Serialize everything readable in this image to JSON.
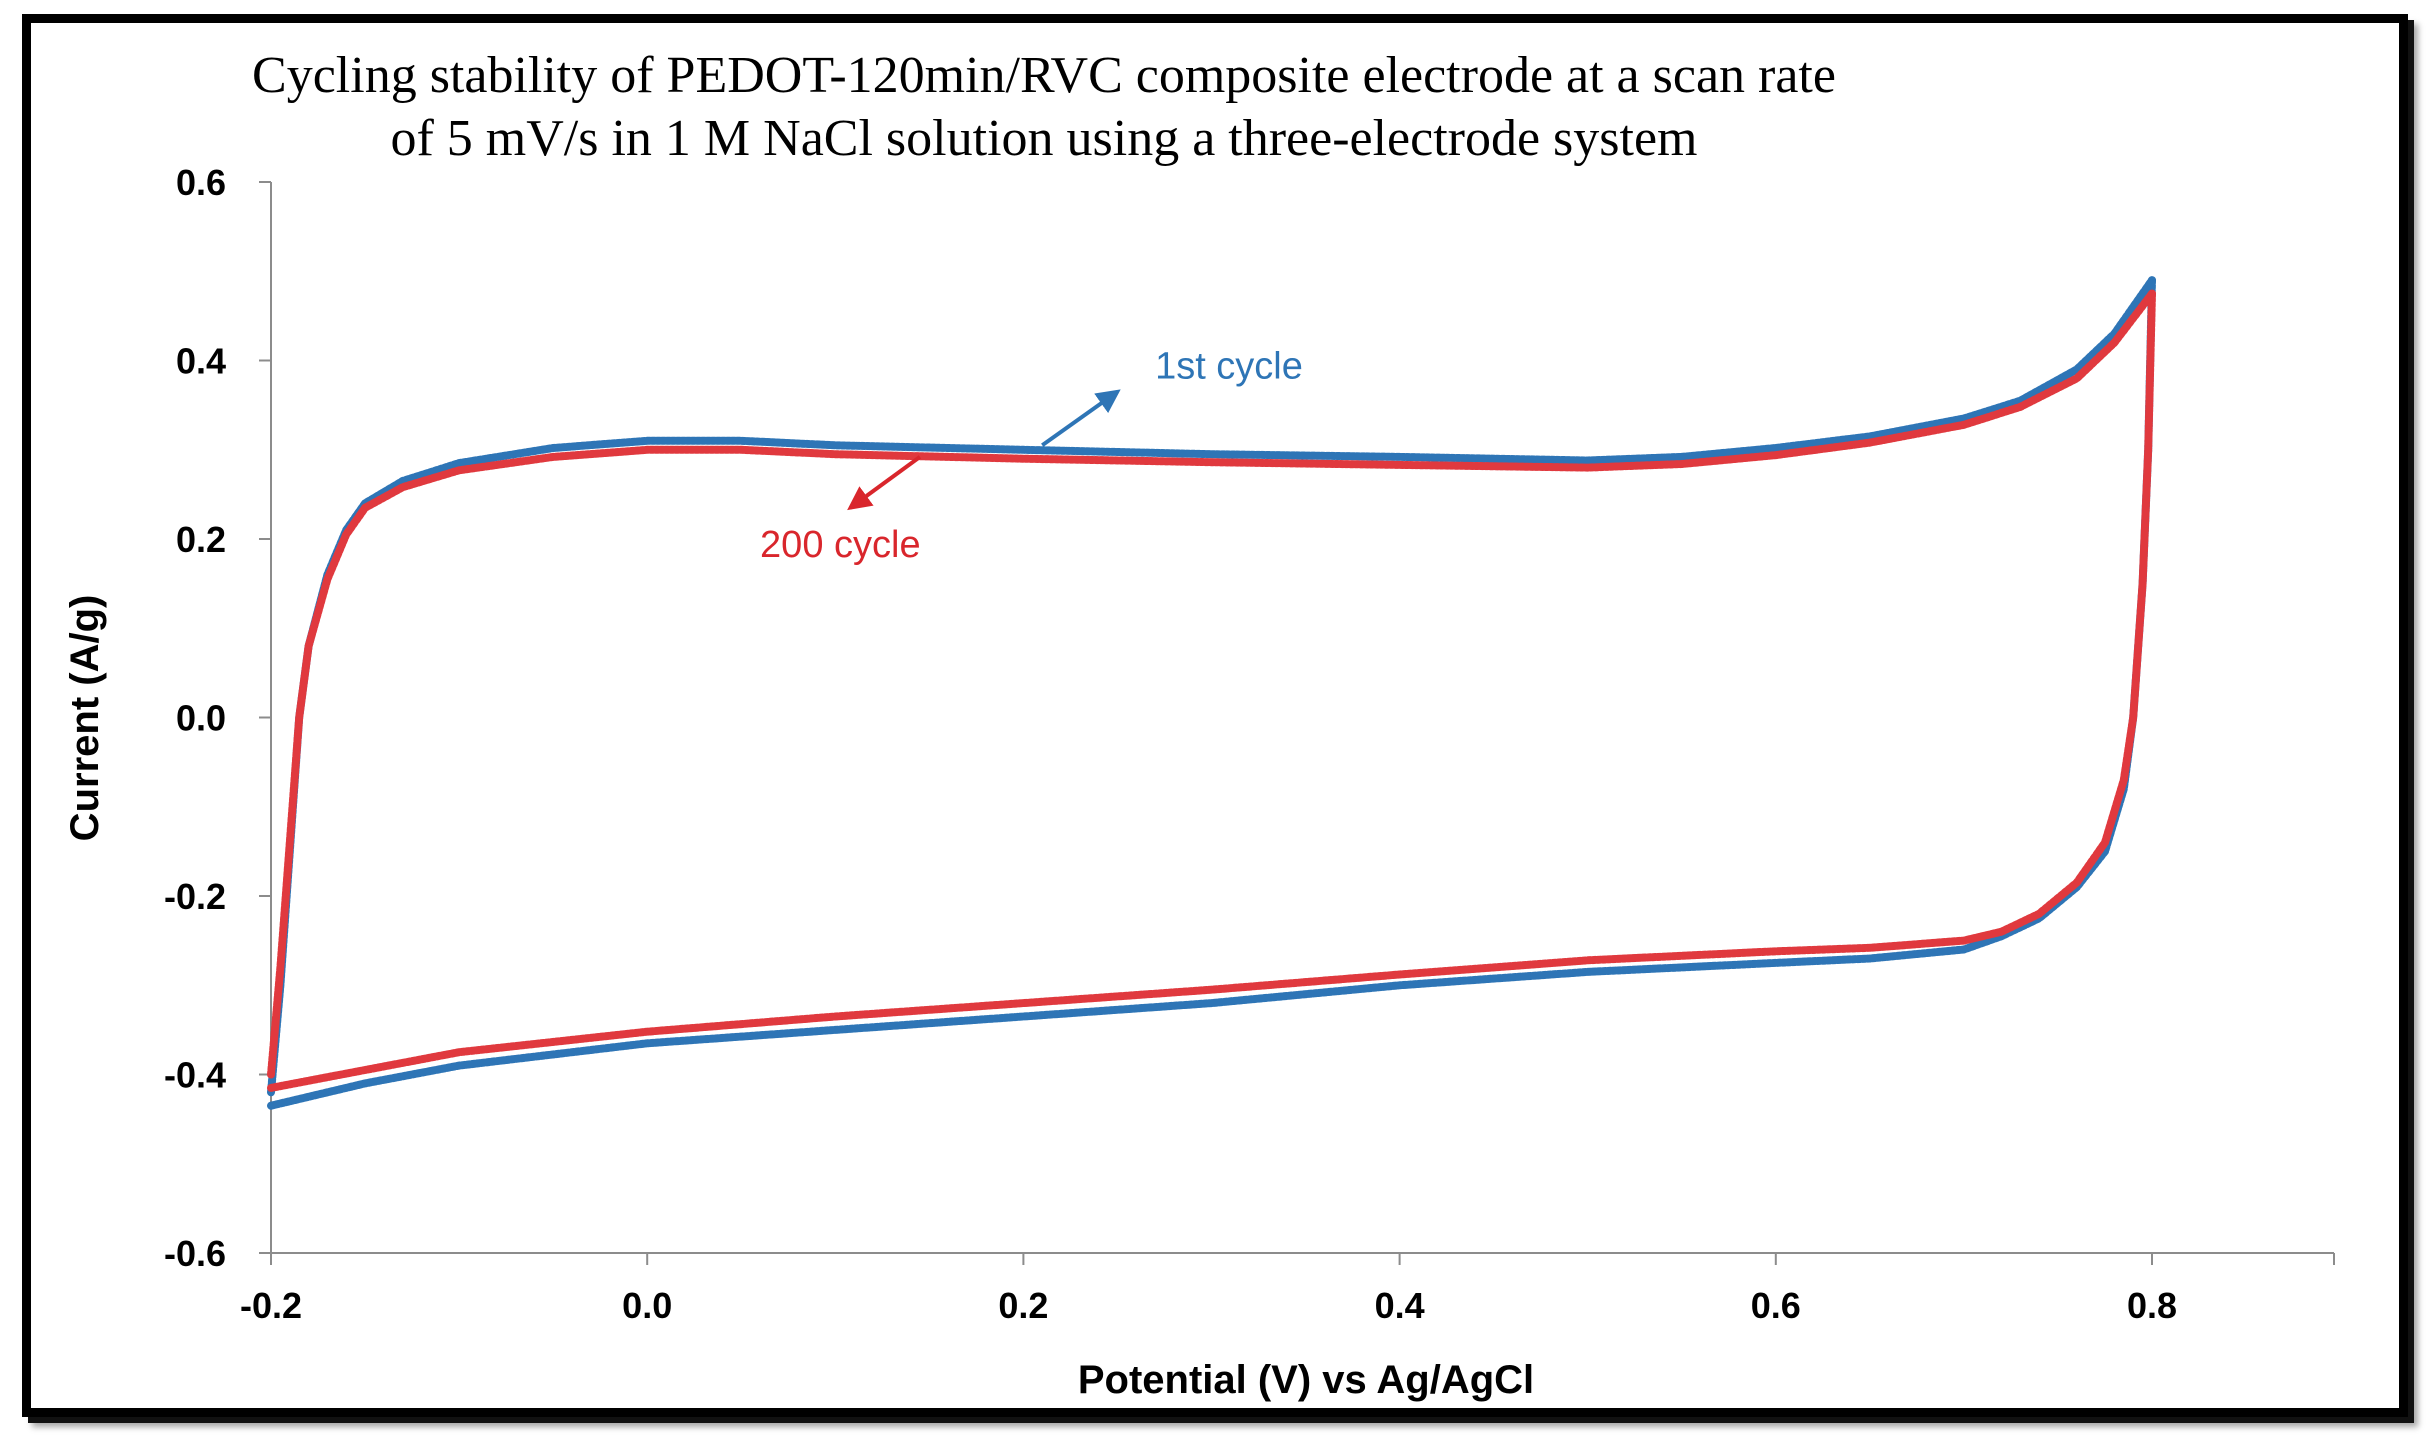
{
  "chart_data": {
    "type": "line",
    "title_lines": [
      "Cycling stability of PEDOT-120min/RVC composite electrode at a scan rate",
      "of 5 mV/s in 1 M NaCl solution using a three-electrode system"
    ],
    "xlabel": "Potential (V) vs Ag/AgCl",
    "ylabel": "Current (A/g)",
    "xlim": [
      -0.2,
      0.9
    ],
    "ylim": [
      -0.6,
      0.6
    ],
    "x_ticks": [
      -0.2,
      0.0,
      0.2,
      0.4,
      0.6,
      0.8
    ],
    "x_tick_labels": [
      "-0.2",
      "0.0",
      "0.2",
      "0.4",
      "0.6",
      "0.8"
    ],
    "y_ticks": [
      0.6,
      0.4,
      0.2,
      0.0,
      -0.2,
      -0.4,
      -0.6
    ],
    "y_tick_labels": [
      "0.6",
      "0.4",
      "0.2",
      "0.0",
      "-0.2",
      "-0.4",
      "-0.6"
    ],
    "grid": false,
    "series": [
      {
        "name": "1st cycle",
        "color": "#2E75B6",
        "anodic": [
          [
            -0.2,
            -0.42
          ],
          [
            -0.195,
            -0.3
          ],
          [
            -0.19,
            -0.15
          ],
          [
            -0.185,
            0.0
          ],
          [
            -0.18,
            0.08
          ],
          [
            -0.17,
            0.16
          ],
          [
            -0.16,
            0.21
          ],
          [
            -0.15,
            0.24
          ],
          [
            -0.13,
            0.265
          ],
          [
            -0.1,
            0.285
          ],
          [
            -0.05,
            0.302
          ],
          [
            0.0,
            0.31
          ],
          [
            0.05,
            0.31
          ],
          [
            0.1,
            0.305
          ],
          [
            0.2,
            0.3
          ],
          [
            0.3,
            0.295
          ],
          [
            0.4,
            0.292
          ],
          [
            0.5,
            0.288
          ],
          [
            0.55,
            0.292
          ],
          [
            0.6,
            0.302
          ],
          [
            0.65,
            0.315
          ],
          [
            0.7,
            0.335
          ],
          [
            0.73,
            0.355
          ],
          [
            0.76,
            0.39
          ],
          [
            0.78,
            0.43
          ],
          [
            0.8,
            0.49
          ]
        ],
        "cathodic": [
          [
            0.8,
            0.49
          ],
          [
            0.798,
            0.3
          ],
          [
            0.795,
            0.15
          ],
          [
            0.79,
            0.0
          ],
          [
            0.785,
            -0.08
          ],
          [
            0.775,
            -0.15
          ],
          [
            0.76,
            -0.19
          ],
          [
            0.74,
            -0.225
          ],
          [
            0.72,
            -0.245
          ],
          [
            0.7,
            -0.26
          ],
          [
            0.65,
            -0.27
          ],
          [
            0.6,
            -0.275
          ],
          [
            0.5,
            -0.285
          ],
          [
            0.4,
            -0.3
          ],
          [
            0.3,
            -0.32
          ],
          [
            0.2,
            -0.335
          ],
          [
            0.1,
            -0.35
          ],
          [
            0.0,
            -0.365
          ],
          [
            -0.1,
            -0.39
          ],
          [
            -0.15,
            -0.41
          ],
          [
            -0.2,
            -0.435
          ]
        ]
      },
      {
        "name": "200 cycle",
        "color": "#E0393E",
        "anodic": [
          [
            -0.2,
            -0.4
          ],
          [
            -0.195,
            -0.28
          ],
          [
            -0.19,
            -0.14
          ],
          [
            -0.185,
            0.0
          ],
          [
            -0.18,
            0.08
          ],
          [
            -0.17,
            0.155
          ],
          [
            -0.16,
            0.205
          ],
          [
            -0.15,
            0.235
          ],
          [
            -0.13,
            0.258
          ],
          [
            -0.1,
            0.277
          ],
          [
            -0.05,
            0.292
          ],
          [
            0.0,
            0.3
          ],
          [
            0.05,
            0.3
          ],
          [
            0.1,
            0.295
          ],
          [
            0.2,
            0.29
          ],
          [
            0.3,
            0.286
          ],
          [
            0.4,
            0.283
          ],
          [
            0.5,
            0.28
          ],
          [
            0.55,
            0.284
          ],
          [
            0.6,
            0.294
          ],
          [
            0.65,
            0.308
          ],
          [
            0.7,
            0.328
          ],
          [
            0.73,
            0.348
          ],
          [
            0.76,
            0.38
          ],
          [
            0.78,
            0.42
          ],
          [
            0.8,
            0.475
          ]
        ],
        "cathodic": [
          [
            0.8,
            0.475
          ],
          [
            0.798,
            0.3
          ],
          [
            0.795,
            0.15
          ],
          [
            0.79,
            0.0
          ],
          [
            0.785,
            -0.07
          ],
          [
            0.775,
            -0.14
          ],
          [
            0.76,
            -0.185
          ],
          [
            0.74,
            -0.22
          ],
          [
            0.72,
            -0.24
          ],
          [
            0.7,
            -0.25
          ],
          [
            0.65,
            -0.258
          ],
          [
            0.6,
            -0.262
          ],
          [
            0.5,
            -0.272
          ],
          [
            0.4,
            -0.288
          ],
          [
            0.3,
            -0.305
          ],
          [
            0.2,
            -0.32
          ],
          [
            0.1,
            -0.335
          ],
          [
            0.0,
            -0.352
          ],
          [
            -0.1,
            -0.375
          ],
          [
            -0.15,
            -0.395
          ],
          [
            -0.2,
            -0.415
          ]
        ]
      }
    ],
    "annotations": [
      {
        "text": "1st cycle",
        "color": "#2E75B6",
        "arrow_from": [
          0.21,
          0.305
        ],
        "arrow_to": [
          0.25,
          0.365
        ],
        "label_at": [
          0.27,
          0.38
        ]
      },
      {
        "text": "200 cycle",
        "color": "#D9262C",
        "arrow_from": [
          0.145,
          0.292
        ],
        "arrow_to": [
          0.108,
          0.235
        ],
        "label_at": [
          0.06,
          0.18
        ]
      }
    ]
  }
}
